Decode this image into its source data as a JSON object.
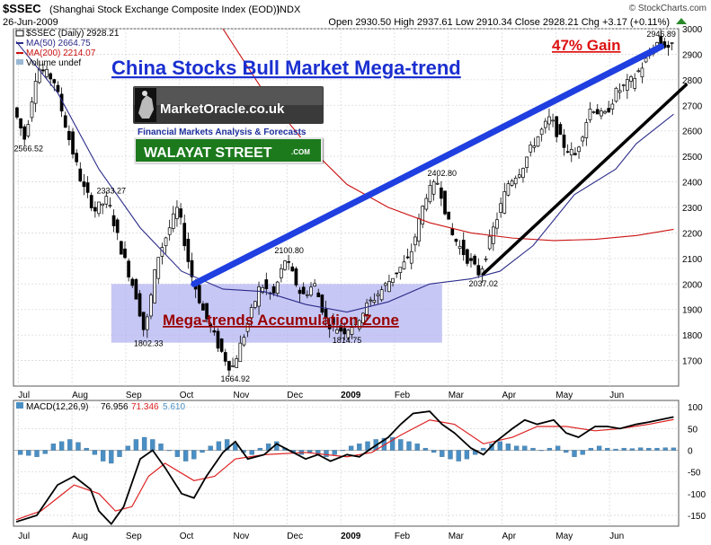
{
  "header": {
    "symbol": "$SSEC",
    "name": "(Shanghai Stock Exchange Composite Index (EOD))",
    "exchange": "INDX",
    "date": "26-Jun-2009",
    "ohlc": "Open 2930.50  High 2937.61  Low 2910.34  Close 2928.21  Chg +3.17 (+0.11%)",
    "chg_icon": "up-triangle-icon",
    "source": "© StockCharts.com"
  },
  "legend": {
    "price": "$SSEC (Daily) 2928.21",
    "ma50": "MA(50) 2664.75",
    "ma200": "MA(200) 2214.07",
    "volume": "Volume undef"
  },
  "annotations": {
    "title": "China Stocks Bull Market Mega-trend",
    "gain": "47% Gain",
    "zone": "Mega-trends Accumulation Zone"
  },
  "logo": {
    "brand": "MarketOracle.co.uk",
    "tagline": "Financial Markets Analysis & Forecasts",
    "sign": "WALAYAT STREET",
    "sign_suffix": ".COM"
  },
  "macd_legend": {
    "label": "MACD(12,26,9)",
    "v1": "76.956",
    "v2": "71.346",
    "v3": "5.610"
  },
  "colors": {
    "ma50": "#2b2b8a",
    "ma200": "#cc1111",
    "trend": "#1f3fe0",
    "zone": "#b4b4f2",
    "title_blue": "#1a2fd0",
    "gain_red": "#dd1111",
    "zone_text": "#990000",
    "hist": "#4a8fc4",
    "macd_signal": "#dd2222",
    "sign_green": "#1f7a1f"
  },
  "chart_data": [
    {
      "type": "candlestick",
      "x_ticks": [
        "Jul",
        "Aug",
        "Sep",
        "Oct",
        "Nov",
        "Dec",
        "2009",
        "Feb",
        "Mar",
        "Apr",
        "May",
        "Jun"
      ],
      "ylim": [
        1600,
        3000
      ],
      "y_ticks": [
        1700,
        1800,
        1900,
        2000,
        2100,
        2200,
        2300,
        2400,
        2500,
        2600,
        2700,
        2800,
        2900,
        3000
      ],
      "grid": true,
      "price_path": [
        [
          0,
          2700
        ],
        [
          0.3,
          2566
        ],
        [
          0.6,
          2850
        ],
        [
          1,
          2800
        ],
        [
          1.4,
          2550
        ],
        [
          1.7,
          2380
        ],
        [
          2,
          2290
        ],
        [
          2.3,
          2333
        ],
        [
          2.6,
          2150
        ],
        [
          3,
          1950
        ],
        [
          3.2,
          1802
        ],
        [
          3.5,
          2100
        ],
        [
          4,
          2300
        ],
        [
          4.3,
          2050
        ],
        [
          4.6,
          1900
        ],
        [
          5,
          1750
        ],
        [
          5.3,
          1664
        ],
        [
          5.6,
          1800
        ],
        [
          6,
          2000
        ],
        [
          6.3,
          1950
        ],
        [
          6.6,
          2100
        ],
        [
          7,
          1950
        ],
        [
          7.3,
          2000
        ],
        [
          7.6,
          1850
        ],
        [
          8,
          1815
        ],
        [
          8.3,
          1850
        ],
        [
          8.6,
          1920
        ],
        [
          9,
          1990
        ],
        [
          9.3,
          2050
        ],
        [
          9.6,
          2100
        ],
        [
          10,
          2350
        ],
        [
          10.3,
          2402
        ],
        [
          10.6,
          2200
        ],
        [
          11,
          2100
        ],
        [
          11.3,
          2037
        ],
        [
          11.6,
          2200
        ],
        [
          12,
          2400
        ],
        [
          12.3,
          2450
        ],
        [
          12.6,
          2550
        ],
        [
          13,
          2650
        ],
        [
          13.3,
          2550
        ],
        [
          13.6,
          2500
        ],
        [
          14,
          2700
        ],
        [
          14.3,
          2650
        ],
        [
          14.6,
          2750
        ],
        [
          15,
          2800
        ],
        [
          15.3,
          2870
        ],
        [
          15.6,
          2947
        ],
        [
          15.9,
          2928
        ]
      ],
      "ma50": [
        [
          0,
          2950
        ],
        [
          1,
          2750
        ],
        [
          2,
          2450
        ],
        [
          3,
          2220
        ],
        [
          4,
          2050
        ],
        [
          5,
          1980
        ],
        [
          6,
          1970
        ],
        [
          7,
          1920
        ],
        [
          8,
          1890
        ],
        [
          9,
          1930
        ],
        [
          10,
          2000
        ],
        [
          11,
          2020
        ],
        [
          11.7,
          2050
        ],
        [
          12.5,
          2150
        ],
        [
          13.5,
          2350
        ],
        [
          14.5,
          2450
        ],
        [
          15,
          2550
        ],
        [
          15.9,
          2665
        ]
      ],
      "ma200": [
        [
          5,
          3000
        ],
        [
          6,
          2750
        ],
        [
          7,
          2550
        ],
        [
          8,
          2390
        ],
        [
          9,
          2300
        ],
        [
          10,
          2240
        ],
        [
          11,
          2200
        ],
        [
          12,
          2180
        ],
        [
          13,
          2170
        ],
        [
          14,
          2175
        ],
        [
          15,
          2190
        ],
        [
          15.9,
          2214
        ]
      ],
      "price_labels": [
        {
          "x": 0.3,
          "y": 2566,
          "text": "2566.52"
        },
        {
          "x": 2.3,
          "y": 2333,
          "text": "2333.27"
        },
        {
          "x": 3.2,
          "y": 1802,
          "text": "1802.33"
        },
        {
          "x": 5.3,
          "y": 1664,
          "text": "1664.92"
        },
        {
          "x": 6.6,
          "y": 2100,
          "text": "2100.80"
        },
        {
          "x": 8.0,
          "y": 1815,
          "text": "1814.75"
        },
        {
          "x": 10.3,
          "y": 2402,
          "text": "2402.80"
        },
        {
          "x": 11.3,
          "y": 2037,
          "text": "2037.02"
        },
        {
          "x": 15.6,
          "y": 2947,
          "text": "2946.89"
        }
      ],
      "accumulation_zone": {
        "x": [
          2.3,
          10.3
        ],
        "y": [
          1770,
          2000
        ]
      },
      "trendline_blue": [
        [
          4.3,
          2000
        ],
        [
          15.6,
          2930
        ]
      ],
      "trendline_black": [
        [
          11.3,
          2040
        ],
        [
          16.2,
          2780
        ]
      ]
    },
    {
      "type": "line",
      "name": "MACD(12,26,9)",
      "ylim": [
        -175,
        115
      ],
      "y_ticks": [
        100,
        50,
        0,
        -50,
        -100,
        -150
      ],
      "macd": [
        [
          0,
          -165
        ],
        [
          0.5,
          -150
        ],
        [
          1,
          -80
        ],
        [
          1.4,
          -60
        ],
        [
          1.8,
          -90
        ],
        [
          2,
          -140
        ],
        [
          2.3,
          -170
        ],
        [
          2.6,
          -130
        ],
        [
          3,
          -20
        ],
        [
          3.3,
          0
        ],
        [
          3.6,
          -40
        ],
        [
          4,
          -100
        ],
        [
          4.3,
          -110
        ],
        [
          4.6,
          -60
        ],
        [
          5,
          -5
        ],
        [
          5.3,
          20
        ],
        [
          5.6,
          -20
        ],
        [
          6,
          -10
        ],
        [
          6.3,
          15
        ],
        [
          6.6,
          0
        ],
        [
          7,
          -20
        ],
        [
          7.3,
          -10
        ],
        [
          7.6,
          -25
        ],
        [
          8,
          -10
        ],
        [
          8.3,
          -15
        ],
        [
          8.6,
          5
        ],
        [
          9,
          30
        ],
        [
          9.3,
          60
        ],
        [
          9.6,
          85
        ],
        [
          10,
          90
        ],
        [
          10.3,
          60
        ],
        [
          10.6,
          40
        ],
        [
          11,
          5
        ],
        [
          11.3,
          -10
        ],
        [
          11.6,
          20
        ],
        [
          12,
          50
        ],
        [
          12.3,
          70
        ],
        [
          12.6,
          60
        ],
        [
          13,
          70
        ],
        [
          13.3,
          40
        ],
        [
          13.6,
          30
        ],
        [
          14,
          55
        ],
        [
          14.3,
          55
        ],
        [
          14.6,
          50
        ],
        [
          15,
          60
        ],
        [
          15.3,
          65
        ],
        [
          15.9,
          77
        ]
      ],
      "signal": [
        [
          0,
          -160
        ],
        [
          0.6,
          -140
        ],
        [
          1,
          -110
        ],
        [
          1.4,
          -80
        ],
        [
          2,
          -100
        ],
        [
          2.4,
          -140
        ],
        [
          2.8,
          -130
        ],
        [
          3.2,
          -60
        ],
        [
          3.6,
          -30
        ],
        [
          4.3,
          -70
        ],
        [
          4.8,
          -60
        ],
        [
          5.3,
          -20
        ],
        [
          6,
          -10
        ],
        [
          7,
          -5
        ],
        [
          8,
          -15
        ],
        [
          8.6,
          -5
        ],
        [
          9.3,
          35
        ],
        [
          10,
          70
        ],
        [
          10.6,
          60
        ],
        [
          11.3,
          15
        ],
        [
          12,
          30
        ],
        [
          12.6,
          55
        ],
        [
          13.3,
          55
        ],
        [
          14,
          45
        ],
        [
          14.6,
          50
        ],
        [
          15.3,
          60
        ],
        [
          15.9,
          71
        ]
      ],
      "histogram": [
        [
          0.1,
          -10
        ],
        [
          0.3,
          -12
        ],
        [
          0.5,
          -15
        ],
        [
          0.7,
          -8
        ],
        [
          0.9,
          15
        ],
        [
          1.1,
          20
        ],
        [
          1.3,
          25
        ],
        [
          1.5,
          18
        ],
        [
          1.7,
          5
        ],
        [
          1.9,
          -10
        ],
        [
          2.1,
          -25
        ],
        [
          2.3,
          -30
        ],
        [
          2.5,
          -15
        ],
        [
          2.7,
          10
        ],
        [
          2.9,
          25
        ],
        [
          3.1,
          30
        ],
        [
          3.3,
          25
        ],
        [
          3.5,
          15
        ],
        [
          3.7,
          0
        ],
        [
          3.9,
          -15
        ],
        [
          4.1,
          -25
        ],
        [
          4.3,
          -20
        ],
        [
          4.5,
          -5
        ],
        [
          4.7,
          10
        ],
        [
          4.9,
          20
        ],
        [
          5.1,
          25
        ],
        [
          5.3,
          15
        ],
        [
          5.5,
          -5
        ],
        [
          5.7,
          -10
        ],
        [
          5.9,
          5
        ],
        [
          6.1,
          15
        ],
        [
          6.3,
          20
        ],
        [
          6.5,
          5
        ],
        [
          6.7,
          -5
        ],
        [
          6.9,
          -10
        ],
        [
          7.1,
          -5
        ],
        [
          7.3,
          -10
        ],
        [
          7.5,
          -15
        ],
        [
          7.7,
          -10
        ],
        [
          7.9,
          0
        ],
        [
          8.1,
          10
        ],
        [
          8.3,
          15
        ],
        [
          8.5,
          20
        ],
        [
          8.7,
          25
        ],
        [
          8.9,
          28
        ],
        [
          9.1,
          30
        ],
        [
          9.3,
          25
        ],
        [
          9.5,
          20
        ],
        [
          9.7,
          15
        ],
        [
          9.9,
          5
        ],
        [
          10.1,
          -5
        ],
        [
          10.3,
          -15
        ],
        [
          10.5,
          -20
        ],
        [
          10.7,
          -25
        ],
        [
          10.9,
          -20
        ],
        [
          11.1,
          -10
        ],
        [
          11.3,
          5
        ],
        [
          11.5,
          15
        ],
        [
          11.7,
          20
        ],
        [
          11.9,
          15
        ],
        [
          12.1,
          10
        ],
        [
          12.3,
          10
        ],
        [
          12.5,
          5
        ],
        [
          12.7,
          0
        ],
        [
          12.9,
          5
        ],
        [
          13.1,
          10
        ],
        [
          13.3,
          -5
        ],
        [
          13.5,
          -15
        ],
        [
          13.7,
          -10
        ],
        [
          13.9,
          5
        ],
        [
          14.1,
          10
        ],
        [
          14.3,
          5
        ],
        [
          14.5,
          3
        ],
        [
          14.7,
          5
        ],
        [
          14.9,
          4
        ],
        [
          15.1,
          6
        ],
        [
          15.3,
          5
        ],
        [
          15.5,
          5
        ],
        [
          15.7,
          6
        ],
        [
          15.9,
          5.6
        ]
      ]
    }
  ]
}
